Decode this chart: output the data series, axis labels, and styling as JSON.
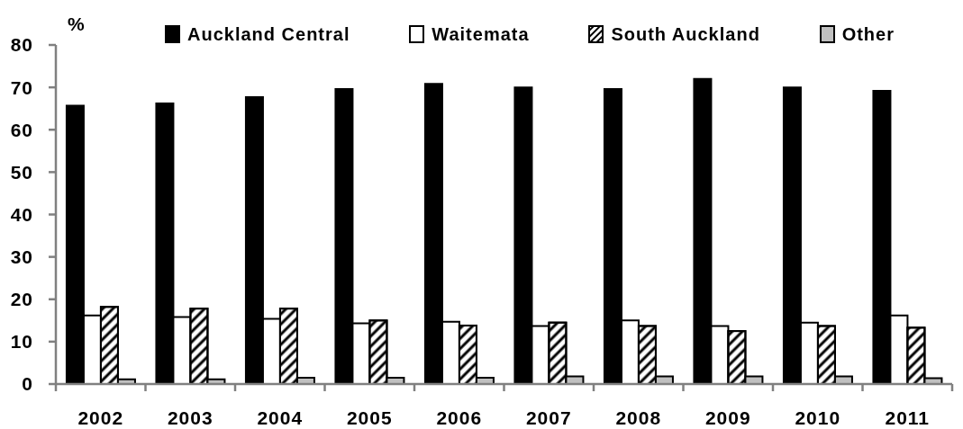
{
  "chart_data": {
    "type": "bar",
    "ylabel": "%",
    "categories": [
      "2002",
      "2003",
      "2004",
      "2005",
      "2006",
      "2007",
      "2008",
      "2009",
      "2010",
      "2011"
    ],
    "series": [
      {
        "name": "Auckland Central",
        "color": "#000000",
        "values": [
          65.7,
          66.2,
          67.7,
          69.6,
          70.8,
          70.0,
          69.6,
          72.0,
          70.0,
          69.2
        ]
      },
      {
        "name": "Waitemata",
        "color": "#ffffff",
        "values": [
          16.2,
          15.8,
          15.4,
          14.3,
          14.7,
          13.7,
          15.0,
          13.7,
          14.5,
          16.2
        ]
      },
      {
        "name": "South Auckland",
        "color": "#000000",
        "values": [
          18.2,
          17.8,
          17.8,
          15.0,
          13.8,
          14.5,
          13.7,
          12.5,
          13.7,
          13.3
        ]
      },
      {
        "name": "Other",
        "color": "#c0c0c0",
        "values": [
          1.1,
          1.1,
          1.5,
          1.5,
          1.5,
          1.8,
          1.8,
          1.8,
          1.8,
          1.4
        ]
      }
    ],
    "ylim": [
      0,
      80
    ],
    "yticks": [
      0,
      10,
      20,
      30,
      40,
      50,
      60,
      70,
      80
    ],
    "legend": "top"
  }
}
